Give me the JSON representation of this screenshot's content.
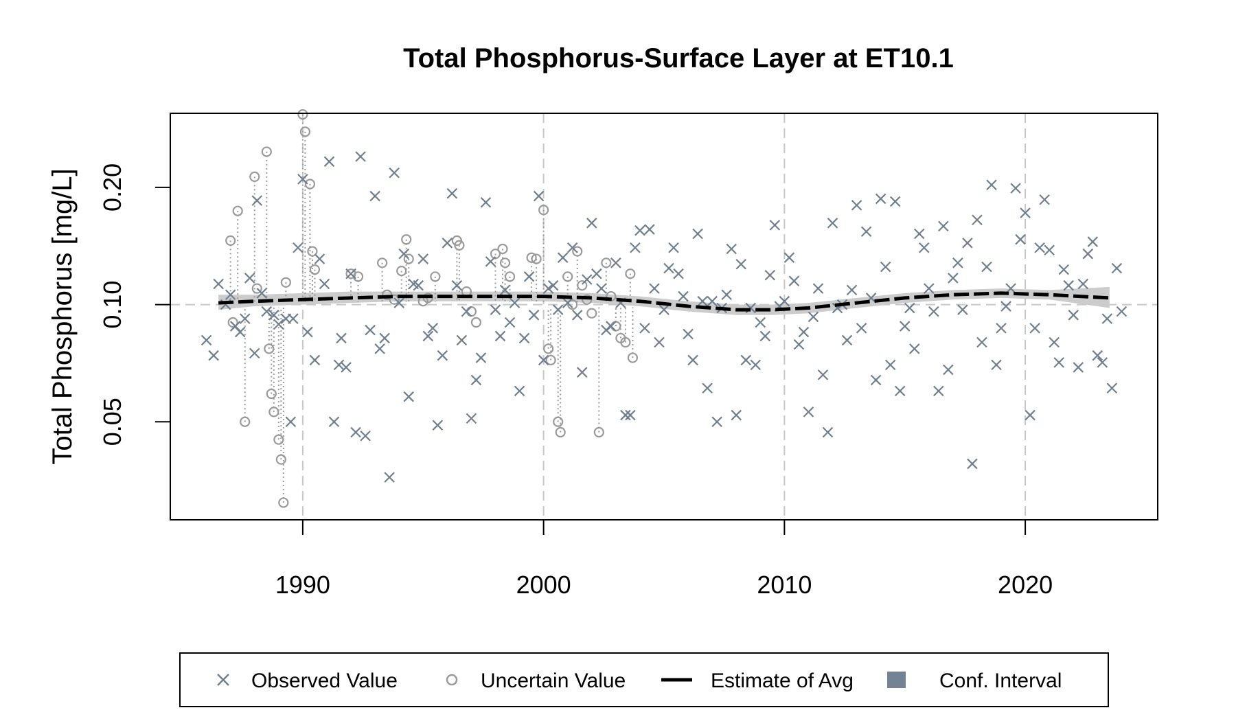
{
  "chart_data": {
    "type": "scatter",
    "title": "Total Phosphorus-Surface Layer at ET10.1",
    "xlabel": "",
    "ylabel": "Total Phosphorus [mg/L]",
    "y_scale": "log",
    "xlim": [
      1984.5,
      2025.5
    ],
    "ylim": [
      0.028,
      0.31
    ],
    "x_ticks": [
      1990,
      2000,
      2010,
      2020
    ],
    "y_ticks": [
      0.05,
      0.1,
      0.2
    ],
    "y_tick_labels": [
      "0.05",
      "0.10",
      "0.20"
    ],
    "reference_line": 0.1,
    "grid": "vertical dashed at x ticks",
    "legend": {
      "placement": "bottom",
      "entries": [
        "Observed Value",
        "Uncertain Value",
        "Estimate of Avg",
        "Conf. Interval"
      ]
    },
    "colors": {
      "observed": "#6e7f8f",
      "uncertain": "#9a9a9a",
      "estimate": "#000000",
      "ci_band": "#cccccc",
      "ci_legend": "#748394",
      "grid": "#c8c8c8"
    },
    "estimate_of_avg": {
      "x": [
        1986.5,
        1988,
        1990,
        1992,
        1994,
        1996,
        1998,
        2000,
        2002,
        2004,
        2006,
        2008,
        2009.5,
        2011,
        2013,
        2015,
        2017,
        2019,
        2021,
        2023.5
      ],
      "y": [
        0.101,
        0.102,
        0.103,
        0.104,
        0.105,
        0.105,
        0.105,
        0.105,
        0.104,
        0.102,
        0.099,
        0.097,
        0.097,
        0.098,
        0.101,
        0.104,
        0.106,
        0.107,
        0.106,
        0.104
      ]
    },
    "conf_interval": {
      "x": [
        1986.5,
        1988,
        1990,
        1992,
        1994,
        1996,
        1998,
        2000,
        2002,
        2004,
        2006,
        2008,
        2009.5,
        2011,
        2013,
        2015,
        2017,
        2019,
        2021,
        2023.5
      ],
      "lower": [
        0.097,
        0.099,
        0.1,
        0.101,
        0.102,
        0.102,
        0.102,
        0.102,
        0.101,
        0.099,
        0.096,
        0.094,
        0.094,
        0.095,
        0.098,
        0.101,
        0.103,
        0.104,
        0.103,
        0.098
      ],
      "upper": [
        0.106,
        0.106,
        0.107,
        0.108,
        0.108,
        0.108,
        0.108,
        0.108,
        0.107,
        0.105,
        0.102,
        0.1,
        0.1,
        0.101,
        0.104,
        0.107,
        0.109,
        0.11,
        0.109,
        0.111
      ]
    },
    "observed": [
      [
        1986.0,
        0.081
      ],
      [
        1986.3,
        0.074
      ],
      [
        1986.5,
        0.113
      ],
      [
        1986.8,
        0.1
      ],
      [
        1987.0,
        0.106
      ],
      [
        1987.2,
        0.088
      ],
      [
        1987.4,
        0.085
      ],
      [
        1987.6,
        0.092
      ],
      [
        1987.8,
        0.117
      ],
      [
        1988.0,
        0.075
      ],
      [
        1988.1,
        0.185
      ],
      [
        1988.3,
        0.107
      ],
      [
        1988.5,
        0.096
      ],
      [
        1988.8,
        0.094
      ],
      [
        1989.0,
        0.089
      ],
      [
        1989.3,
        0.092
      ],
      [
        1989.5,
        0.05
      ],
      [
        1989.6,
        0.092
      ],
      [
        1989.8,
        0.14
      ],
      [
        1990.0,
        0.21
      ],
      [
        1990.2,
        0.085
      ],
      [
        1990.5,
        0.072
      ],
      [
        1990.7,
        0.131
      ],
      [
        1990.9,
        0.113
      ],
      [
        1991.1,
        0.233
      ],
      [
        1991.3,
        0.05
      ],
      [
        1991.5,
        0.07
      ],
      [
        1991.6,
        0.082
      ],
      [
        1991.8,
        0.069
      ],
      [
        1992.0,
        0.12
      ],
      [
        1992.2,
        0.047
      ],
      [
        1992.4,
        0.24
      ],
      [
        1992.6,
        0.046
      ],
      [
        1992.8,
        0.086
      ],
      [
        1993.0,
        0.19
      ],
      [
        1993.2,
        0.077
      ],
      [
        1993.4,
        0.082
      ],
      [
        1993.6,
        0.036
      ],
      [
        1993.8,
        0.218
      ],
      [
        1994.0,
        0.101
      ],
      [
        1994.2,
        0.135
      ],
      [
        1994.4,
        0.058
      ],
      [
        1994.6,
        0.113
      ],
      [
        1994.8,
        0.112
      ],
      [
        1995.0,
        0.131
      ],
      [
        1995.2,
        0.083
      ],
      [
        1995.4,
        0.087
      ],
      [
        1995.6,
        0.049
      ],
      [
        1995.8,
        0.074
      ],
      [
        1996.0,
        0.144
      ],
      [
        1996.2,
        0.193
      ],
      [
        1996.4,
        0.112
      ],
      [
        1996.6,
        0.081
      ],
      [
        1996.8,
        0.096
      ],
      [
        1997.0,
        0.051
      ],
      [
        1997.2,
        0.064
      ],
      [
        1997.4,
        0.073
      ],
      [
        1997.6,
        0.183
      ],
      [
        1997.8,
        0.129
      ],
      [
        1998.0,
        0.097
      ],
      [
        1998.2,
        0.083
      ],
      [
        1998.4,
        0.109
      ],
      [
        1998.6,
        0.09
      ],
      [
        1998.8,
        0.101
      ],
      [
        1999.0,
        0.06
      ],
      [
        1999.2,
        0.082
      ],
      [
        1999.4,
        0.118
      ],
      [
        1999.6,
        0.094
      ],
      [
        1999.8,
        0.19
      ],
      [
        2000.0,
        0.072
      ],
      [
        2000.2,
        0.11
      ],
      [
        2000.4,
        0.112
      ],
      [
        2000.6,
        0.097
      ],
      [
        2000.8,
        0.132
      ],
      [
        2001.0,
        0.101
      ],
      [
        2001.2,
        0.14
      ],
      [
        2001.4,
        0.094
      ],
      [
        2001.6,
        0.067
      ],
      [
        2001.8,
        0.116
      ],
      [
        2002.0,
        0.162
      ],
      [
        2002.2,
        0.12
      ],
      [
        2002.4,
        0.11
      ],
      [
        2002.6,
        0.086
      ],
      [
        2002.8,
        0.088
      ],
      [
        2003.0,
        0.128
      ],
      [
        2003.2,
        0.101
      ],
      [
        2003.4,
        0.052
      ],
      [
        2003.6,
        0.052
      ],
      [
        2003.8,
        0.14
      ],
      [
        2004.0,
        0.155
      ],
      [
        2004.2,
        0.087
      ],
      [
        2004.4,
        0.156
      ],
      [
        2004.6,
        0.11
      ],
      [
        2004.8,
        0.08
      ],
      [
        2005.0,
        0.097
      ],
      [
        2005.2,
        0.124
      ],
      [
        2005.4,
        0.14
      ],
      [
        2005.6,
        0.12
      ],
      [
        2005.8,
        0.105
      ],
      [
        2006.0,
        0.084
      ],
      [
        2006.2,
        0.072
      ],
      [
        2006.4,
        0.152
      ],
      [
        2006.6,
        0.102
      ],
      [
        2006.8,
        0.061
      ],
      [
        2007.0,
        0.102
      ],
      [
        2007.2,
        0.05
      ],
      [
        2007.4,
        0.098
      ],
      [
        2007.6,
        0.106
      ],
      [
        2007.8,
        0.139
      ],
      [
        2008.0,
        0.052
      ],
      [
        2008.2,
        0.127
      ],
      [
        2008.4,
        0.072
      ],
      [
        2008.6,
        0.098
      ],
      [
        2008.8,
        0.07
      ],
      [
        2009.0,
        0.09
      ],
      [
        2009.2,
        0.083
      ],
      [
        2009.4,
        0.119
      ],
      [
        2009.6,
        0.16
      ],
      [
        2009.8,
        0.099
      ],
      [
        2010.0,
        0.102
      ],
      [
        2010.2,
        0.132
      ],
      [
        2010.4,
        0.115
      ],
      [
        2010.6,
        0.079
      ],
      [
        2010.8,
        0.085
      ],
      [
        2011.0,
        0.053
      ],
      [
        2011.2,
        0.093
      ],
      [
        2011.4,
        0.11
      ],
      [
        2011.6,
        0.066
      ],
      [
        2011.8,
        0.047
      ],
      [
        2012.0,
        0.162
      ],
      [
        2012.2,
        0.098
      ],
      [
        2012.4,
        0.1
      ],
      [
        2012.6,
        0.081
      ],
      [
        2012.8,
        0.109
      ],
      [
        2013.0,
        0.18
      ],
      [
        2013.2,
        0.087
      ],
      [
        2013.4,
        0.154
      ],
      [
        2013.6,
        0.104
      ],
      [
        2013.8,
        0.064
      ],
      [
        2014.0,
        0.187
      ],
      [
        2014.2,
        0.125
      ],
      [
        2014.4,
        0.07
      ],
      [
        2014.6,
        0.184
      ],
      [
        2014.8,
        0.06
      ],
      [
        2015.0,
        0.088
      ],
      [
        2015.2,
        0.098
      ],
      [
        2015.4,
        0.077
      ],
      [
        2015.6,
        0.152
      ],
      [
        2015.8,
        0.14
      ],
      [
        2016.0,
        0.11
      ],
      [
        2016.2,
        0.096
      ],
      [
        2016.4,
        0.06
      ],
      [
        2016.6,
        0.159
      ],
      [
        2016.8,
        0.068
      ],
      [
        2017.0,
        0.117
      ],
      [
        2017.2,
        0.128
      ],
      [
        2017.4,
        0.097
      ],
      [
        2017.6,
        0.144
      ],
      [
        2017.8,
        0.039
      ],
      [
        2018.0,
        0.165
      ],
      [
        2018.2,
        0.08
      ],
      [
        2018.4,
        0.125
      ],
      [
        2018.6,
        0.203
      ],
      [
        2018.8,
        0.07
      ],
      [
        2019.0,
        0.087
      ],
      [
        2019.2,
        0.099
      ],
      [
        2019.4,
        0.11
      ],
      [
        2019.6,
        0.199
      ],
      [
        2019.8,
        0.147
      ],
      [
        2020.0,
        0.172
      ],
      [
        2020.2,
        0.052
      ],
      [
        2020.4,
        0.087
      ],
      [
        2020.6,
        0.14
      ],
      [
        2020.8,
        0.186
      ],
      [
        2021.0,
        0.138
      ],
      [
        2021.2,
        0.08
      ],
      [
        2021.4,
        0.071
      ],
      [
        2021.6,
        0.123
      ],
      [
        2021.8,
        0.112
      ],
      [
        2022.0,
        0.094
      ],
      [
        2022.2,
        0.069
      ],
      [
        2022.4,
        0.113
      ],
      [
        2022.6,
        0.135
      ],
      [
        2022.8,
        0.145
      ],
      [
        2023.0,
        0.074
      ],
      [
        2023.2,
        0.071
      ],
      [
        2023.4,
        0.092
      ],
      [
        2023.6,
        0.061
      ],
      [
        2023.8,
        0.124
      ],
      [
        2024.0,
        0.096
      ]
    ],
    "uncertain": [
      [
        1987.0,
        0.146
      ],
      [
        1987.1,
        0.09
      ],
      [
        1987.3,
        0.174
      ],
      [
        1987.6,
        0.05
      ],
      [
        1988.0,
        0.213
      ],
      [
        1988.1,
        0.11
      ],
      [
        1988.5,
        0.247
      ],
      [
        1988.6,
        0.077
      ],
      [
        1988.7,
        0.059
      ],
      [
        1988.8,
        0.053
      ],
      [
        1989.0,
        0.045
      ],
      [
        1989.1,
        0.04
      ],
      [
        1989.2,
        0.031
      ],
      [
        1989.3,
        0.114
      ],
      [
        1990.0,
        0.308
      ],
      [
        1990.1,
        0.278
      ],
      [
        1990.3,
        0.204
      ],
      [
        1990.4,
        0.137
      ],
      [
        1990.5,
        0.123
      ],
      [
        1992.0,
        0.12
      ],
      [
        1992.3,
        0.118
      ],
      [
        1993.3,
        0.128
      ],
      [
        1993.5,
        0.106
      ],
      [
        1993.8,
        0.103
      ],
      [
        1994.1,
        0.122
      ],
      [
        1994.3,
        0.147
      ],
      [
        1994.4,
        0.131
      ],
      [
        1995.0,
        0.102
      ],
      [
        1995.2,
        0.104
      ],
      [
        1995.5,
        0.118
      ],
      [
        1996.4,
        0.146
      ],
      [
        1996.5,
        0.142
      ],
      [
        1996.8,
        0.108
      ],
      [
        1997.0,
        0.096
      ],
      [
        1997.2,
        0.09
      ],
      [
        1998.0,
        0.135
      ],
      [
        1998.3,
        0.139
      ],
      [
        1998.4,
        0.128
      ],
      [
        1998.6,
        0.118
      ],
      [
        1999.5,
        0.132
      ],
      [
        1999.7,
        0.131
      ],
      [
        2000.0,
        0.175
      ],
      [
        2000.2,
        0.077
      ],
      [
        2000.3,
        0.072
      ],
      [
        2000.6,
        0.05
      ],
      [
        2000.7,
        0.047
      ],
      [
        2001.0,
        0.118
      ],
      [
        2001.2,
        0.1
      ],
      [
        2001.4,
        0.137
      ],
      [
        2001.6,
        0.112
      ],
      [
        2001.8,
        0.103
      ],
      [
        2002.0,
        0.095
      ],
      [
        2002.3,
        0.047
      ],
      [
        2002.6,
        0.128
      ],
      [
        2002.8,
        0.105
      ],
      [
        2003.0,
        0.088
      ],
      [
        2003.2,
        0.082
      ],
      [
        2003.4,
        0.08
      ],
      [
        2003.6,
        0.12
      ],
      [
        2003.7,
        0.073
      ]
    ]
  }
}
